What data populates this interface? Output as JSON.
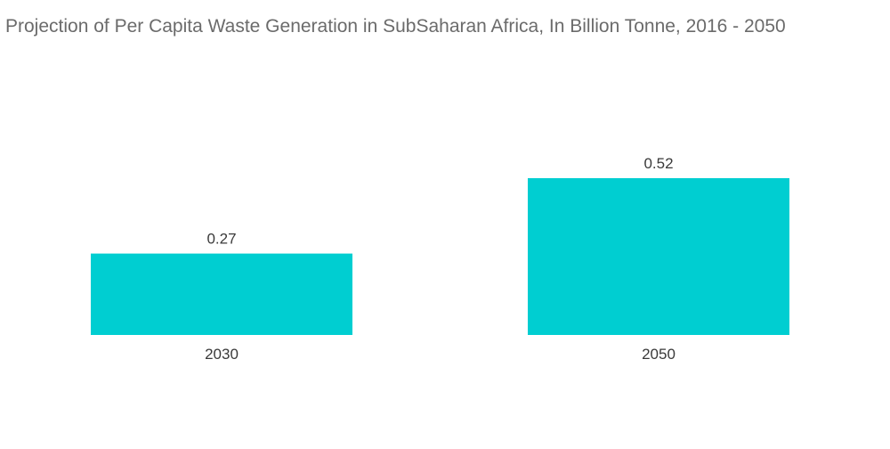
{
  "chart_data": {
    "type": "bar",
    "title": "Projection of Per Capita Waste Generation in SubSaharan Africa, In Billion Tonne, 2016 - 2050",
    "xlabel": "",
    "ylabel": "",
    "categories": [
      "2030",
      "2050"
    ],
    "values": [
      0.27,
      0.52
    ],
    "value_labels": [
      "0.27",
      "0.52"
    ],
    "ylim": [
      0,
      0.52
    ],
    "grid": false,
    "legend": "none",
    "bar_color": "#00CED1"
  }
}
